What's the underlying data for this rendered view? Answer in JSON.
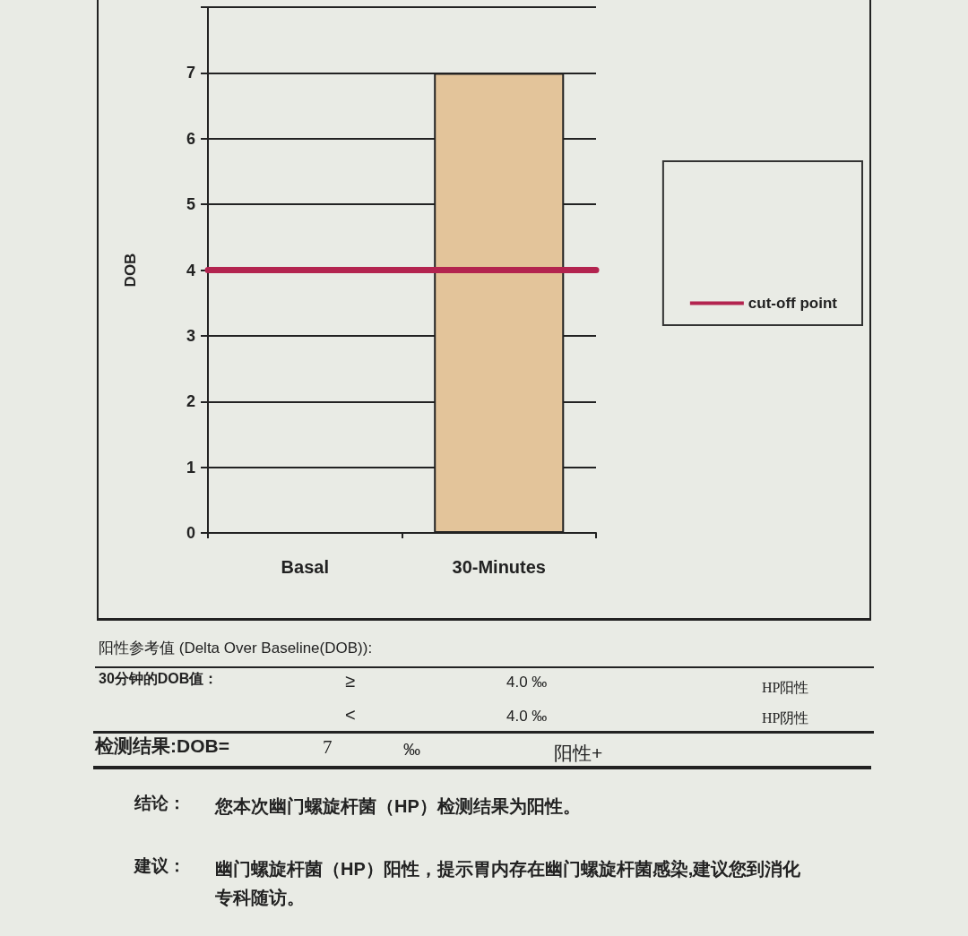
{
  "chart_data": {
    "type": "bar",
    "ylabel": "DOB",
    "categories": [
      "Basal",
      "30-Minutes"
    ],
    "values": [
      0,
      7
    ],
    "color": "#e3c49a",
    "ylim": [
      0,
      8
    ],
    "yticks": [
      0,
      1,
      2,
      3,
      4,
      5,
      6,
      7,
      {
        "value": 8,
        "label": null
      }
    ],
    "grid": "y",
    "legend": "right",
    "ref_lines": [
      {
        "axis": "y",
        "value": 4,
        "label": "cut-off point",
        "color": "#b3244f"
      }
    ],
    "annotations": [
      "阳性参考值 (Delta Over Baseline(DOB)):",
      "30分钟的DOB值：",
      "≥",
      "4.0 ‰",
      "HP阳性",
      "<",
      "4.0 ‰",
      "HP阴性",
      "检测结果:DOB=",
      "7",
      "‰",
      "阳性+",
      "结论：",
      "您本次幽门螺旋杆菌（HP）检测结果为阳性。",
      "建议：",
      "幽门螺旋杆菌（HP）阳性，提示胃内存在幽门螺旋杆菌感染,建议您到消化",
      "专科随访。"
    ]
  }
}
